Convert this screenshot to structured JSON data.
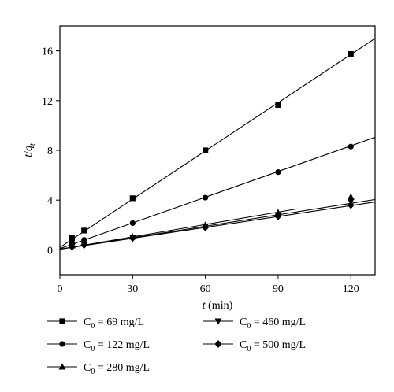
{
  "chart_data": {
    "type": "scatter",
    "xlabel": {
      "var": "t",
      "unit": " (min)"
    },
    "ylabel": {
      "base": "t",
      "sep": "/",
      "var": "q",
      "sub": "t"
    },
    "xlim": [
      0,
      130
    ],
    "ylim": [
      -2,
      18
    ],
    "xticks": [
      0,
      30,
      60,
      90,
      120
    ],
    "yticks": [
      0,
      4,
      8,
      12,
      16
    ],
    "grid": false,
    "legend_position": "bottom",
    "series": [
      {
        "name": {
          "sym": "C",
          "sub": "0",
          "text": " = 69 mg/L"
        },
        "marker": "square",
        "x": [
          5,
          10,
          30,
          60,
          90,
          120
        ],
        "y": [
          0.95,
          1.55,
          4.15,
          8.0,
          11.65,
          15.75
        ],
        "fit": {
          "x0": 0,
          "y0": 0.2,
          "x1": 130,
          "y1": 17.0
        }
      },
      {
        "name": {
          "sym": "C",
          "sub": "0",
          "text": " = 122 mg/L"
        },
        "marker": "circle",
        "x": [
          5,
          10,
          30,
          60,
          90,
          120
        ],
        "y": [
          0.6,
          0.8,
          2.15,
          4.2,
          6.25,
          8.3
        ],
        "fit": {
          "x0": 0,
          "y0": 0.1,
          "x1": 130,
          "y1": 9.05
        }
      },
      {
        "name": {
          "sym": "C",
          "sub": "0",
          "text": " = 280 mg/L"
        },
        "marker": "triangle-up",
        "x": [
          5,
          10,
          30,
          60,
          90,
          120
        ],
        "y": [
          0.35,
          0.5,
          1.05,
          2.0,
          3.0,
          4.25
        ],
        "fit": {
          "x0": 0,
          "y0": 0.05,
          "x1": 98,
          "y1": 3.3
        }
      },
      {
        "name": {
          "sym": "C",
          "sub": "0",
          "text": " = 460 mg/L"
        },
        "marker": "triangle-down",
        "x": [
          5,
          10,
          30,
          60,
          90,
          120
        ],
        "y": [
          0.3,
          0.45,
          1.0,
          1.9,
          2.8,
          3.9
        ],
        "fit": {
          "x0": 0,
          "y0": 0.05,
          "x1": 130,
          "y1": 4.05
        }
      },
      {
        "name": {
          "sym": "C",
          "sub": "0",
          "text": " = 500 mg/L"
        },
        "marker": "diamond",
        "x": [
          5,
          10,
          30,
          60,
          90,
          120
        ],
        "y": [
          0.25,
          0.4,
          0.95,
          1.8,
          2.7,
          3.6
        ],
        "fit": {
          "x0": 0,
          "y0": 0.05,
          "x1": 130,
          "y1": 3.85
        }
      }
    ]
  }
}
